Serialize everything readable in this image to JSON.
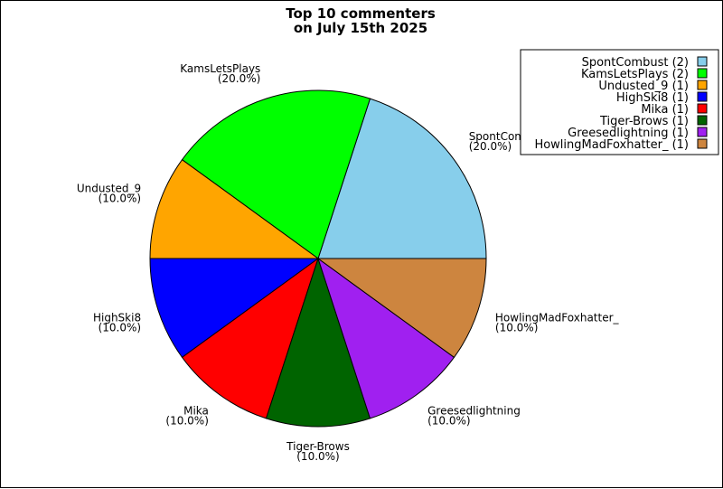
{
  "chart_data": {
    "type": "pie",
    "title_lines": [
      "Top 10 commenters",
      "on July 15th 2025"
    ],
    "slices": [
      {
        "label": "SpontCombust",
        "value": 2,
        "pct_label": "(20.0%)",
        "legend": "SpontCombust (2)",
        "color": "#87CEEB"
      },
      {
        "label": "KamsLetsPlays",
        "value": 2,
        "pct_label": "(20.0%)",
        "legend": "KamsLetsPlays (2)",
        "color": "#00FF00"
      },
      {
        "label": "Undusted_9",
        "value": 1,
        "pct_label": "(10.0%)",
        "legend": "Undusted_9 (1)",
        "color": "#FFA500"
      },
      {
        "label": "HighSki8",
        "value": 1,
        "pct_label": "(10.0%)",
        "legend": "HighSki8 (1)",
        "color": "#0000FF"
      },
      {
        "label": "Mika",
        "value": 1,
        "pct_label": "(10.0%)",
        "legend": "Mika (1)",
        "color": "#FF0000"
      },
      {
        "label": "Tiger-Brows",
        "value": 1,
        "pct_label": "(10.0%)",
        "legend": "Tiger-Brows (1)",
        "color": "#006400"
      },
      {
        "label": "Greesedlightning",
        "value": 1,
        "pct_label": "(10.0%)",
        "legend": "Greesedlightning (1)",
        "color": "#A020F0"
      },
      {
        "label": "HowlingMadFoxhatter_",
        "value": 1,
        "pct_label": "(10.0%)",
        "legend": "HowlingMadFoxhatter_ (1)",
        "color": "#CD853F"
      }
    ],
    "legend_placement": "top-right"
  }
}
